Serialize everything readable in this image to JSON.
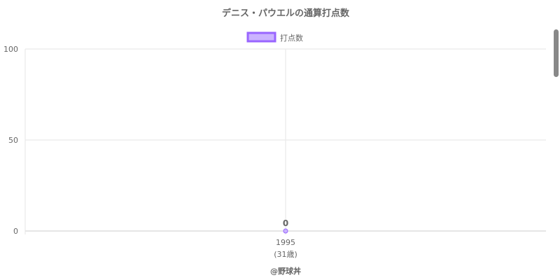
{
  "chart_data": {
    "type": "line",
    "title": "デニス・パウエルの通算打点数",
    "legend": {
      "label": "打点数",
      "placement": "top"
    },
    "categories": [
      "1995"
    ],
    "category_sublabels": [
      "(31歳)"
    ],
    "series": [
      {
        "name": "打点数",
        "values": [
          0
        ],
        "data_labels": [
          "0"
        ]
      }
    ],
    "yticks": [
      "0",
      "50",
      "100"
    ],
    "ylim": [
      0,
      100
    ],
    "grid": true,
    "colors": {
      "point": "#9966ff",
      "fill": "#cbb3ff",
      "grid": "#e5e5e5",
      "text": "#666666"
    },
    "credit": "@野球丼"
  }
}
